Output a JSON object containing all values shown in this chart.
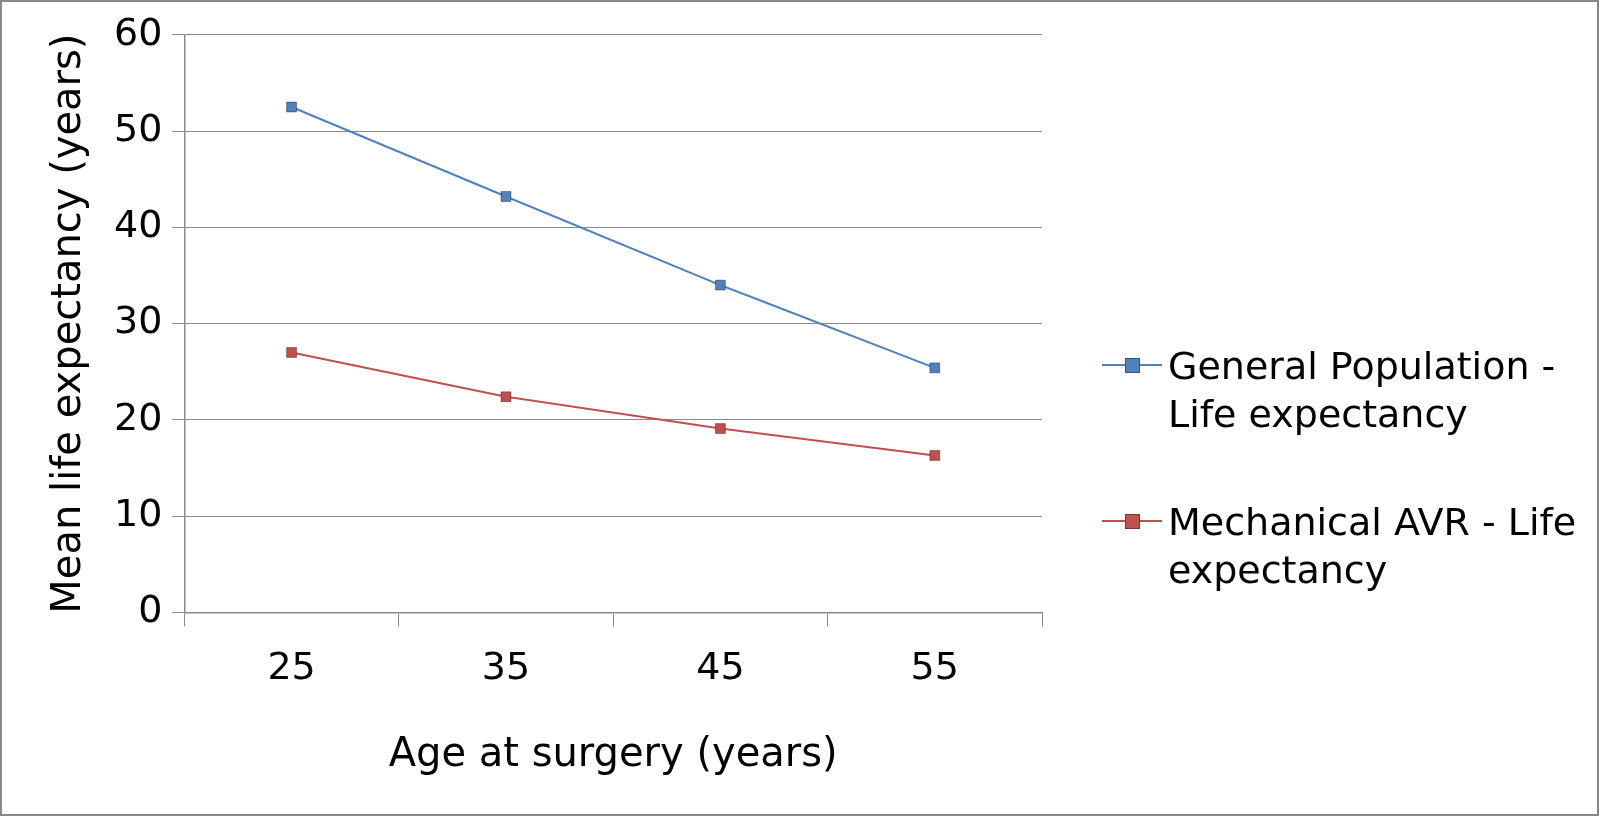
{
  "chart_data": {
    "type": "line",
    "xlabel": "Age at surgery (years)",
    "ylabel": "Mean life expectancy (years)",
    "categories": [
      "25",
      "35",
      "45",
      "55"
    ],
    "series": [
      {
        "name": "General Population - Life expectancy",
        "color": "#4f81bd",
        "values": [
          52.5,
          43.2,
          34,
          25.4
        ]
      },
      {
        "name": "Mechanical AVR - Life expectancy",
        "color": "#c0504d",
        "values": [
          27,
          22.4,
          19.1,
          16.3
        ]
      }
    ],
    "ylim": [
      0,
      60
    ],
    "yticks": [
      0,
      10,
      20,
      30,
      40,
      50,
      60
    ],
    "grid": "y",
    "legend": "right",
    "marker": "square",
    "line_style": "solid"
  }
}
